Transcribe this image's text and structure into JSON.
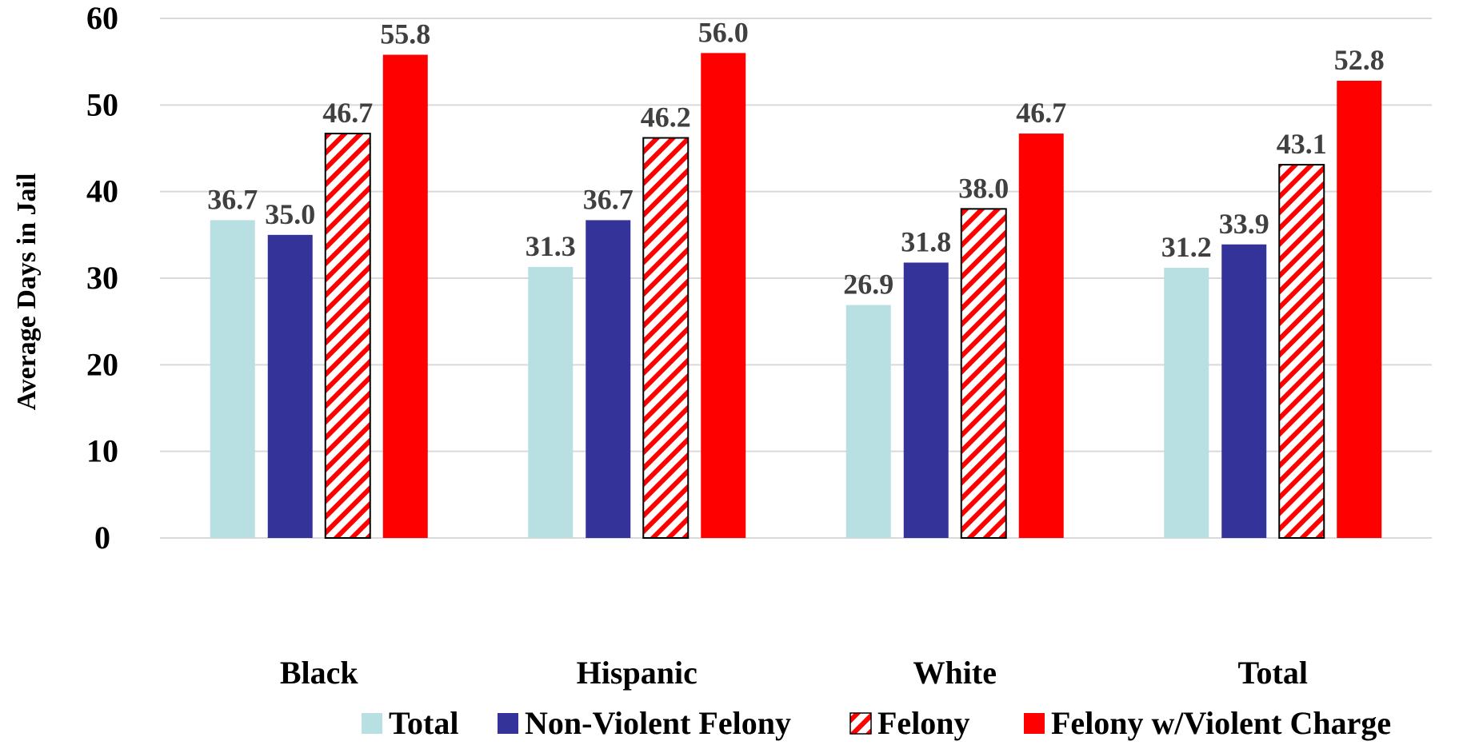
{
  "chart_data": {
    "type": "bar",
    "title": "",
    "xlabel": "",
    "ylabel": "Average Days in Jail",
    "ylim": [
      0,
      60
    ],
    "yticks": [
      0,
      10,
      20,
      30,
      40,
      50,
      60
    ],
    "grid": true,
    "legend_position": "bottom",
    "categories": [
      "Black",
      "Hispanic",
      "White",
      "Total"
    ],
    "series": [
      {
        "name": "Total",
        "values": [
          36.7,
          31.3,
          26.9,
          31.2
        ],
        "color": "#b8e0e2",
        "pattern": "solid"
      },
      {
        "name": "Non-Violent Felony",
        "values": [
          35.0,
          36.7,
          31.8,
          33.9
        ],
        "color": "#333399",
        "pattern": "solid"
      },
      {
        "name": "Felony",
        "values": [
          46.7,
          46.2,
          38.0,
          43.1
        ],
        "color": "#ff0000",
        "pattern": "diagonal-stripes"
      },
      {
        "name": "Felony w/Violent Charge",
        "values": [
          55.8,
          56.0,
          46.7,
          52.8
        ],
        "color": "#ff0000",
        "pattern": "solid"
      }
    ],
    "data_labels": [
      [
        "36.7",
        "31.3",
        "26.9",
        "31.2"
      ],
      [
        "35.0",
        "36.7",
        "31.8",
        "33.9"
      ],
      [
        "46.7",
        "46.2",
        "38.0",
        "43.1"
      ],
      [
        "55.8",
        "56.0",
        "46.7",
        "52.8"
      ]
    ]
  }
}
